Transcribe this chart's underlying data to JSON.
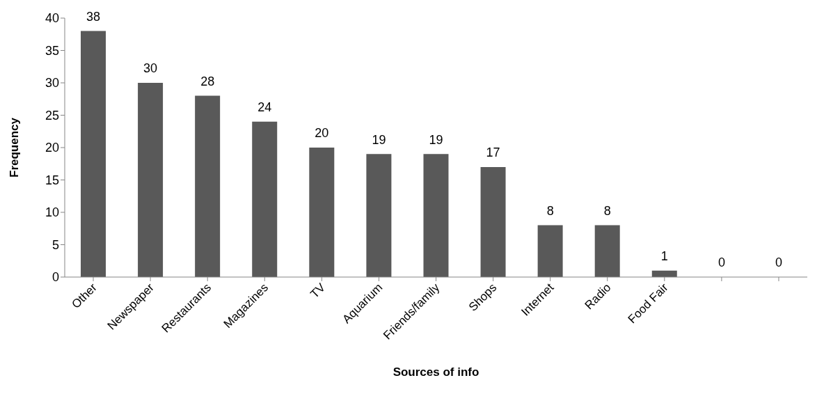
{
  "chart_data": {
    "type": "bar",
    "xlabel": "Sources of info",
    "ylabel": "Frequency",
    "categories": [
      "Other",
      "Newspaper",
      "Restaurants",
      "Magazines",
      "TV",
      "Aquarium",
      "Friends/family",
      "Shops",
      "Internet",
      "Radio",
      "Food Fair",
      null,
      null
    ],
    "values": [
      38,
      30,
      28,
      24,
      20,
      19,
      19,
      17,
      8,
      8,
      1,
      0,
      0
    ],
    "color": "#595959",
    "ylim": [
      0,
      40
    ],
    "yticks": [
      0,
      5,
      10,
      15,
      20,
      25,
      30,
      35,
      40
    ],
    "grid": false,
    "data_labels": true
  }
}
